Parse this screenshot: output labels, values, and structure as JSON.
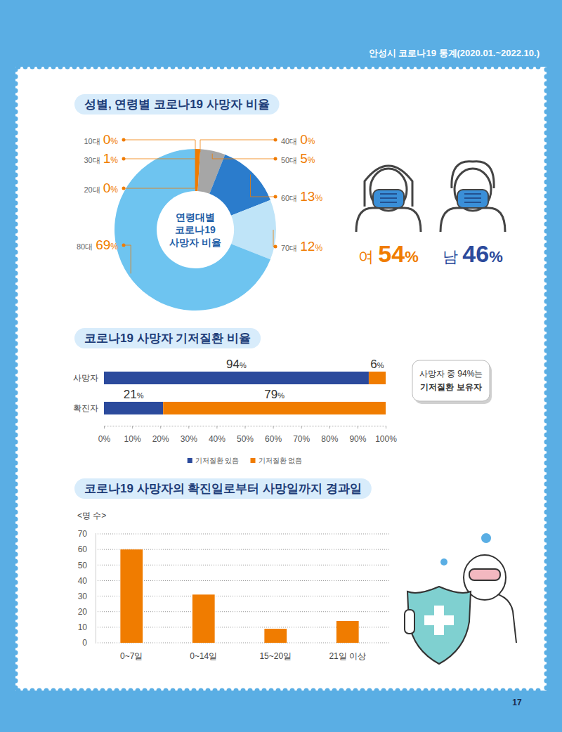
{
  "page": {
    "header": "안성시 코로나19 통계(2020.01.~2022.10.)",
    "page_number": "17"
  },
  "gender": {
    "items": [
      {
        "label": "여",
        "text": "54%",
        "color": "#f07c00"
      },
      {
        "label": "남",
        "text": "46%",
        "color": "#2b4a9c"
      }
    ]
  },
  "chart_data": [
    {
      "type": "pie",
      "title": "성별, 연령별 코로나19 사망자 비율",
      "center_text": [
        "연령대별",
        "코로나19",
        "사망자 비율"
      ],
      "categories": [
        "10대",
        "20대",
        "30대",
        "40대",
        "50대",
        "60대",
        "70대",
        "80대"
      ],
      "values": [
        0,
        0,
        1,
        0,
        5,
        13,
        12,
        69
      ],
      "value_labels": [
        "0%",
        "0%",
        "1%",
        "0%",
        "5%",
        "13%",
        "12%",
        "69%"
      ],
      "colors": [
        "#f07c00",
        "#f07c00",
        "#f07c00",
        "#f07c00",
        "#a6a6a6",
        "#2b7ccc",
        "#bfe4f8",
        "#6ec4f0"
      ],
      "data_labels": true
    },
    {
      "type": "bar",
      "orientation": "horizontal",
      "stacked": true,
      "title": "코로나19 사망자 기저질환 비율",
      "categories": [
        "사망자",
        "확진자"
      ],
      "series": [
        {
          "name": "기저질환 있음",
          "color": "#2b4a9c",
          "values": [
            94,
            21
          ],
          "value_labels": [
            "94%",
            "21%"
          ]
        },
        {
          "name": "기저질환 없음",
          "color": "#f07c00",
          "values": [
            6,
            79
          ],
          "value_labels": [
            "6%",
            "79%"
          ]
        }
      ],
      "xlim": [
        0,
        100
      ],
      "xticks": [
        {
          "value": 0,
          "label": "0%"
        },
        {
          "value": 10,
          "label": "10%"
        },
        {
          "value": 20,
          "label": "20%"
        },
        {
          "value": 30,
          "label": "30%"
        },
        {
          "value": 40,
          "label": "40%"
        },
        {
          "value": 50,
          "label": "50%"
        },
        {
          "value": 60,
          "label": "60%"
        },
        {
          "value": 70,
          "label": "70%"
        },
        {
          "value": 80,
          "label": "80%"
        },
        {
          "value": 90,
          "label": "90%"
        },
        {
          "value": 100,
          "label": "100%"
        }
      ],
      "data_labels": true,
      "legend": "bottom",
      "annotations": [
        "사망자 중 94%는",
        "기저질환 보유자"
      ]
    },
    {
      "type": "bar",
      "title": "코로나19 사망자의 확진일로부터 사망일까지 경과일",
      "y_label": "<명 수>",
      "categories": [
        "0~7일",
        "0~14일",
        "15~20일",
        "21일 이상"
      ],
      "values": [
        60,
        31,
        9,
        14
      ],
      "color": "#f07c00",
      "ylim": [
        0,
        70
      ],
      "yticks": [
        0,
        10,
        20,
        30,
        40,
        50,
        60,
        70
      ],
      "grid": true
    }
  ]
}
